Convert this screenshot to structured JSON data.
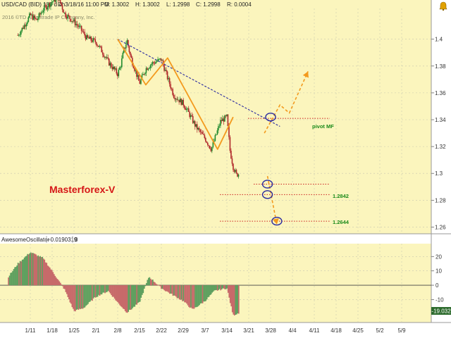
{
  "header": {
    "symbol": "USD/CAD (BID) 180 d 4h",
    "datetime": "D: 3/18/16 11:00 PM",
    "open": "O: 1.3002",
    "high": "H: 1.3002",
    "low": "L: 1.2998",
    "close": "C: 1.2998",
    "range": "R: 0.0004"
  },
  "copyright": "2016 ©TD Ameritrade IP Company, Inc.",
  "brand_label": "Masterforex-V",
  "oscillator": {
    "name": "AwesomeOscillator",
    "value": "-0.0190319",
    "extra": "0",
    "current_badge": "-19.032"
  },
  "annotations": {
    "pivot_label": "pivot MF",
    "level1": "1.2842",
    "level2": "1.2644"
  },
  "colors": {
    "panel_bg": "#fbf5bd",
    "up_candle": "#1f8a2e",
    "down_candle": "#b0272a",
    "trendline": "#2a2aa0",
    "zigzag": "#f39a1e",
    "level_line": "#cc2222",
    "brand": "#d51616",
    "osc_up": "#5fa05f",
    "osc_down": "#c76a6a"
  },
  "chart_data": [
    {
      "type": "candlestick",
      "x_axis_labels": [
        "1/11",
        "1/18",
        "1/25",
        "2/1",
        "2/8",
        "2/15",
        "2/22",
        "2/29",
        "3/7",
        "3/14",
        "3/21",
        "3/28",
        "4/4",
        "4/11",
        "4/18",
        "4/25",
        "5/2",
        "5/9"
      ],
      "y_axis_labels": [
        "1.26",
        "1.28",
        "1.3",
        "1.32",
        "1.34",
        "1.36",
        "1.38",
        "1.4"
      ],
      "ylim": [
        1.255,
        1.425
      ],
      "price_path": [
        [
          "1/7",
          1.403
        ],
        [
          "1/9",
          1.41
        ],
        [
          "1/11",
          1.418
        ],
        [
          "1/13",
          1.414
        ],
        [
          "1/15",
          1.422
        ],
        [
          "1/18",
          1.428
        ],
        [
          "1/20",
          1.431
        ],
        [
          "1/22",
          1.419
        ],
        [
          "1/25",
          1.413
        ],
        [
          "1/27",
          1.408
        ],
        [
          "1/29",
          1.401
        ],
        [
          "2/1",
          1.398
        ],
        [
          "2/3",
          1.391
        ],
        [
          "2/5",
          1.383
        ],
        [
          "2/8",
          1.374
        ],
        [
          "2/9",
          1.381
        ],
        [
          "2/10",
          1.392
        ],
        [
          "2/11",
          1.399
        ],
        [
          "2/12",
          1.388
        ],
        [
          "2/15",
          1.367
        ],
        [
          "2/17",
          1.378
        ],
        [
          "2/19",
          1.382
        ],
        [
          "2/22",
          1.385
        ],
        [
          "2/24",
          1.371
        ],
        [
          "2/26",
          1.358
        ],
        [
          "2/29",
          1.352
        ],
        [
          "3/2",
          1.344
        ],
        [
          "3/4",
          1.335
        ],
        [
          "3/7",
          1.326
        ],
        [
          "3/9",
          1.318
        ],
        [
          "3/11",
          1.332
        ],
        [
          "3/12",
          1.339
        ],
        [
          "3/14",
          1.342
        ],
        [
          "3/15",
          1.317
        ],
        [
          "3/16",
          1.305
        ],
        [
          "3/17",
          1.299
        ],
        [
          "3/18",
          1.2998
        ]
      ],
      "trendline": [
        [
          "2/8",
          1.4
        ],
        [
          "3/31",
          1.335
        ]
      ],
      "zigzag_path": [
        [
          "2/8",
          1.4
        ],
        [
          "2/17",
          1.366
        ],
        [
          "2/24",
          1.386
        ],
        [
          "3/11",
          1.318
        ],
        [
          "3/16",
          1.342
        ]
      ],
      "projection_up": [
        [
          "3/26",
          1.33
        ],
        [
          "3/31",
          1.351
        ],
        [
          "4/3",
          1.345
        ],
        [
          "4/9",
          1.376
        ]
      ],
      "projection_down": [
        [
          "3/27",
          1.298
        ],
        [
          "3/30",
          1.262
        ]
      ],
      "dotted_levels": [
        1.341,
        1.292,
        1.2842,
        1.2644
      ],
      "annotation_circles": [
        [
          "3/28",
          1.342
        ],
        [
          "3/27",
          1.292
        ],
        [
          "3/27",
          1.2842
        ],
        [
          "3/30",
          1.2644
        ]
      ]
    },
    {
      "type": "bar",
      "name": "AwesomeOscillator",
      "y_axis_labels": [
        "20",
        "10",
        "0",
        "-10"
      ],
      "ylim": [
        -25,
        28
      ],
      "histogram_path": [
        [
          "1/4",
          6
        ],
        [
          "1/7",
          15
        ],
        [
          "1/11",
          23
        ],
        [
          "1/15",
          19
        ],
        [
          "1/18",
          10
        ],
        [
          "1/22",
          -3
        ],
        [
          "1/25",
          -18
        ],
        [
          "1/28",
          -16
        ],
        [
          "2/1",
          -8
        ],
        [
          "2/5",
          -4
        ],
        [
          "2/8",
          -12
        ],
        [
          "2/11",
          -19
        ],
        [
          "2/15",
          -12
        ],
        [
          "2/18",
          6
        ],
        [
          "2/22",
          -2
        ],
        [
          "2/25",
          -6
        ],
        [
          "2/29",
          -11
        ],
        [
          "3/3",
          -17
        ],
        [
          "3/7",
          -11
        ],
        [
          "3/10",
          -4
        ],
        [
          "3/14",
          -2
        ],
        [
          "3/16",
          -21
        ],
        [
          "3/18",
          -19.032
        ]
      ]
    }
  ]
}
